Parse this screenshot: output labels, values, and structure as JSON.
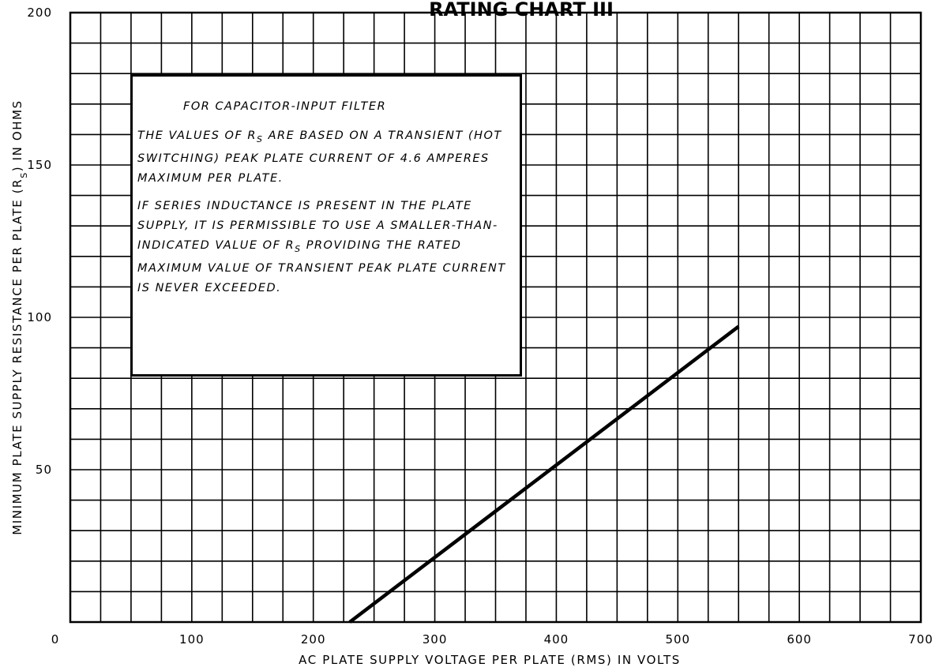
{
  "chart_data": {
    "type": "line",
    "title": "RATING CHART III",
    "xlabel": "AC PLATE SUPPLY VOLTAGE PER PLATE (RMS) IN VOLTS",
    "ylabel_parts": [
      "MINIMUM PLATE SUPPLY RESISTANCE PER PLATE (R",
      "S",
      ") IN OHMS"
    ],
    "xlim": [
      0,
      700
    ],
    "ylim": [
      0,
      200
    ],
    "x_ticks": [
      "0",
      "100",
      "200",
      "300",
      "400",
      "500",
      "600",
      "700"
    ],
    "y_ticks": [
      "200",
      "150",
      "100",
      "50"
    ],
    "grid": true,
    "series": [
      {
        "x": [
          230,
          550
        ],
        "y": [
          0,
          97
        ]
      }
    ]
  },
  "note": {
    "heading": "FOR CAPACITOR-INPUT FILTER",
    "para1_a": "THE VALUES OF R",
    "para1_sub": "S",
    "para1_b": " ARE BASED ON A TRANSIENT (HOT SWITCHING) PEAK PLATE CURRENT OF 4.6 AMPERES MAXIMUM PER PLATE.",
    "para2_a": "IF SERIES INDUCTANCE IS PRESENT IN THE PLATE SUPPLY, IT IS PERMISSIBLE TO USE A SMALLER-THAN-INDICATED VALUE OF R",
    "para2_sub": "S",
    "para2_b": " PROVIDING THE RATED MAXIMUM VALUE OF TRANSIENT PEAK PLATE CURRENT IS NEVER EXCEEDED."
  }
}
